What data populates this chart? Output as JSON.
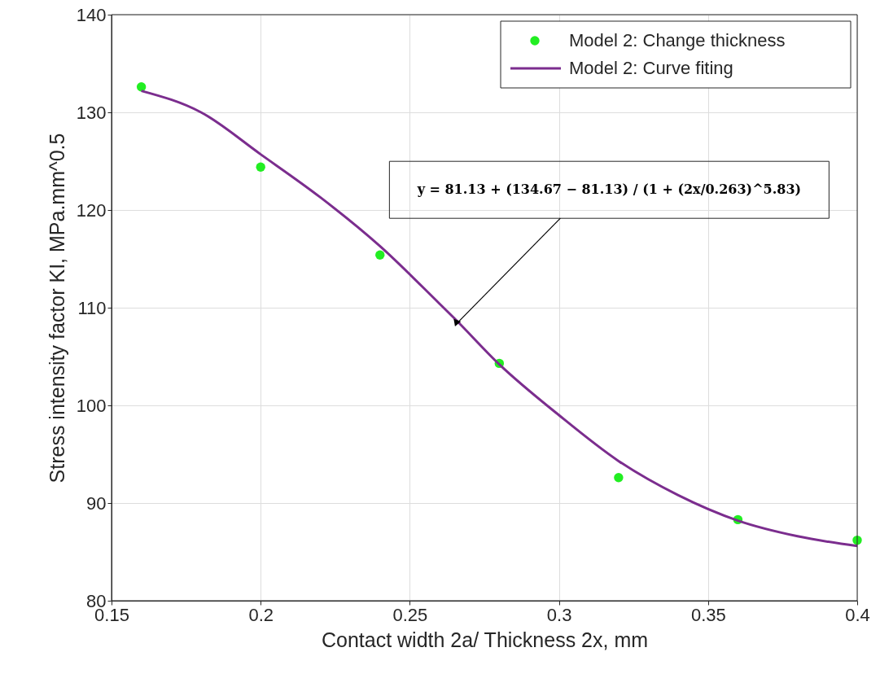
{
  "chart_data": {
    "type": "scatter",
    "xlabel": "Contact width 2a/ Thickness 2x, mm",
    "ylabel": "Stress intensity factor KI, MPa.mm^0.5",
    "xlim": [
      0.15,
      0.4
    ],
    "xticks": [
      0.15,
      0.2,
      0.25,
      0.3,
      0.35,
      0.4
    ],
    "ylim": [
      80,
      140
    ],
    "yticks": [
      80,
      90,
      100,
      110,
      120,
      130,
      140
    ],
    "grid": true,
    "legend": "top right",
    "series": [
      {
        "name": "Model 2: Change thickness",
        "marker": "circle",
        "color": "#22ee22",
        "x": [
          0.16,
          0.2,
          0.24,
          0.28,
          0.32,
          0.36,
          0.4
        ],
        "values": [
          132.6,
          124.4,
          115.4,
          104.3,
          92.6,
          88.3,
          86.2
        ]
      },
      {
        "name": "Model 2: Curve fiting",
        "type": "line",
        "marker": "none",
        "color": "#7b2d8e",
        "line_style": "solid",
        "x": [
          0.16,
          0.18,
          0.2,
          0.22,
          0.24,
          0.26,
          0.265,
          0.28,
          0.3,
          0.32,
          0.34,
          0.36,
          0.38,
          0.4
        ],
        "values": [
          132.2,
          130.0,
          125.7,
          121.3,
          116.3,
          110.4,
          108.9,
          104.2,
          99.0,
          94.3,
          90.8,
          88.2,
          86.6,
          85.6
        ]
      }
    ],
    "annotations": [
      "y = 81.13 + (134.67 − 81.13) / (1 + (2x/0.263)^5.83)"
    ]
  }
}
